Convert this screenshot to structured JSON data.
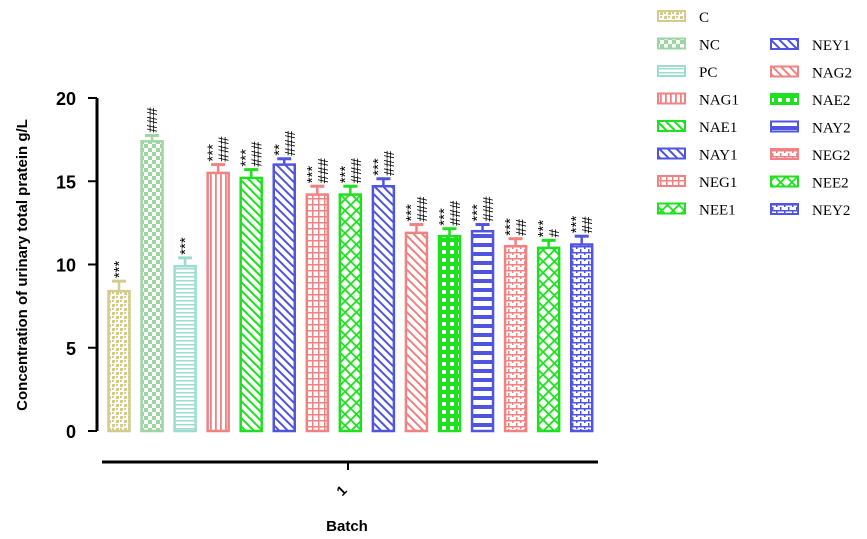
{
  "chart_data": {
    "type": "bar",
    "title": "",
    "xlabel": "Batch",
    "ylabel": "Concentration of urinary total pratein g/L",
    "x_tick_label": "1",
    "ylim": [
      0,
      20
    ],
    "yticks": [
      "0",
      "5",
      "10",
      "15",
      "20"
    ],
    "legend_position": "top-right, two columns",
    "categories": [
      "C",
      "NC",
      "PC",
      "NAG1",
      "NAE1",
      "NAY1",
      "NEG1",
      "NEE1",
      "NEY1",
      "NAG2",
      "NAE2",
      "NAY2",
      "NEG2",
      "NEE2",
      "NEY2"
    ],
    "values": [
      8.4,
      17.4,
      9.9,
      15.5,
      15.2,
      16.0,
      14.2,
      14.2,
      14.7,
      11.9,
      11.7,
      12.0,
      11.1,
      11.0,
      11.2
    ],
    "errors": [
      0.6,
      0.35,
      0.5,
      0.5,
      0.5,
      0.35,
      0.5,
      0.5,
      0.45,
      0.5,
      0.45,
      0.4,
      0.45,
      0.45,
      0.5
    ],
    "annotations": [
      "***",
      "###",
      "***",
      "***\n###",
      "***\n###",
      "**\n###",
      "***\n###",
      "***\n###",
      "***\n###",
      "***\n###",
      "***\n###",
      "***\n###",
      "***\n##",
      "***\n#",
      "***\n##"
    ],
    "series_colors": [
      "#d4cc8c",
      "#9fd4a4",
      "#9edcd2",
      "#f08282",
      "#1ee01e",
      "#5055e0",
      "#f08282",
      "#1ee01e",
      "#5055e0",
      "#f08282",
      "#1ee01e",
      "#5055e0",
      "#f08282",
      "#1ee01e",
      "#5055e0"
    ],
    "series_patterns": [
      "dots",
      "checker",
      "hlines",
      "vlines",
      "diag",
      "diag",
      "grid",
      "diamond",
      "diag",
      "diag",
      "vbars",
      "hbars",
      "bricks",
      "diamond",
      "bricks"
    ]
  }
}
